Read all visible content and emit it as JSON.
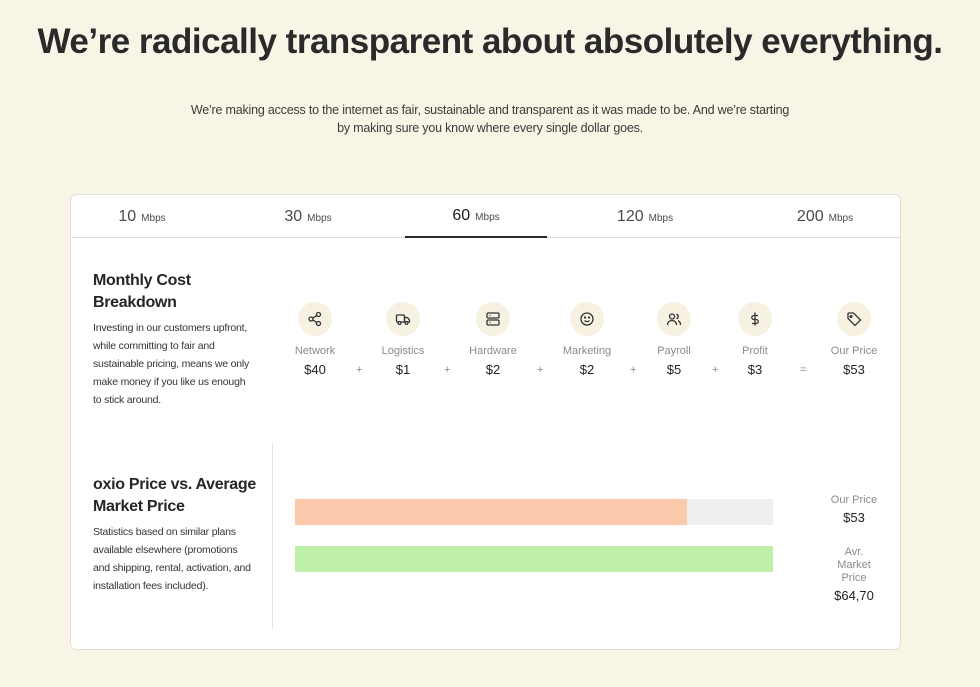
{
  "hero": {
    "headline": "We’re radically transparent about absolutely everything.",
    "subtitle": "We’re making access to the internet as fair, sustainable and transparent as it was made to be. And we’re starting by making sure you know where every single dollar goes."
  },
  "tabs": [
    {
      "num": "10",
      "unit": "Mbps",
      "active": false
    },
    {
      "num": "30",
      "unit": "Mbps",
      "active": false
    },
    {
      "num": "60",
      "unit": "Mbps",
      "active": true
    },
    {
      "num": "120",
      "unit": "Mbps",
      "active": false
    },
    {
      "num": "200",
      "unit": "Mbps",
      "active": false
    }
  ],
  "breakdown": {
    "title": "Monthly Cost Breakdown",
    "description": "Investing in our customers upfront, while committing to fair and sustainable pricing, means we only make money if you like us enough to stick around.",
    "items": [
      {
        "label": "Network",
        "value": "$40",
        "icon": "share-icon"
      },
      {
        "label": "Logistics",
        "value": "$1",
        "icon": "truck-icon"
      },
      {
        "label": "Hardware",
        "value": "$2",
        "icon": "server-icon"
      },
      {
        "label": "Marketing",
        "value": "$2",
        "icon": "smiley-icon"
      },
      {
        "label": "Payroll",
        "value": "$5",
        "icon": "users-icon"
      },
      {
        "label": "Profit",
        "value": "$3",
        "icon": "dollar-icon"
      },
      {
        "label": "Our Price",
        "value": "$53",
        "icon": "tag-icon"
      }
    ],
    "operators": [
      "+",
      "+",
      "+",
      "+",
      "+",
      "="
    ]
  },
  "comparison": {
    "title": "oxio Price vs. Average Market Price",
    "description": "Statistics based on similar plans available elsewhere (promotions and shipping, rental, activation, and installation fees included).",
    "our_price": {
      "label": "Our Price",
      "value": "$53",
      "fraction": 0.82,
      "color": "#fbcaac"
    },
    "market_price": {
      "label": "Avr. Market Price",
      "value": "$64,70",
      "fraction": 1.0,
      "color": "#bff0a9"
    }
  },
  "colors": {
    "background": "#f8f5e6",
    "icon_bg": "#f6f1e1",
    "track": "#efefef"
  }
}
